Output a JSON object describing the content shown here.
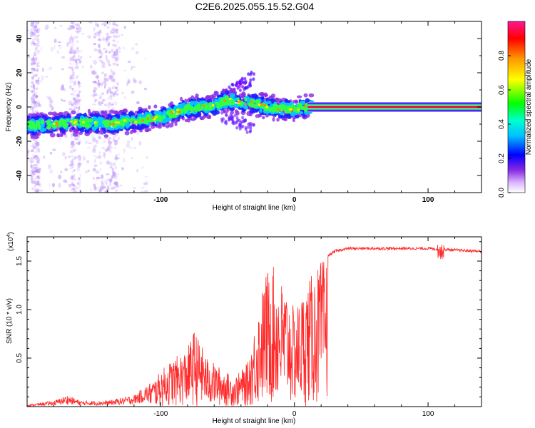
{
  "title": "C2E6.2025.055.15.52.G04",
  "chart_data": [
    {
      "type": "heatmap",
      "name": "spectrogram",
      "xlabel": "Height of straight line (km)",
      "ylabel": "Frequency (Hz)",
      "xlim": [
        -200,
        140
      ],
      "ylim": [
        -50,
        50
      ],
      "xticks": [
        -100,
        0,
        100
      ],
      "yticks": [
        -40,
        -20,
        0,
        20,
        40
      ],
      "ridge": [
        [
          -200,
          -11
        ],
        [
          -180,
          -10
        ],
        [
          -160,
          -9
        ],
        [
          -140,
          -10
        ],
        [
          -120,
          -8
        ],
        [
          -100,
          -6
        ],
        [
          -80,
          -1
        ],
        [
          -60,
          1
        ],
        [
          -50,
          4
        ],
        [
          -40,
          3
        ],
        [
          -30,
          2
        ],
        [
          -20,
          0
        ],
        [
          -10,
          -1
        ],
        [
          0,
          -1
        ],
        [
          10,
          0
        ],
        [
          140,
          0
        ]
      ],
      "colorbar": {
        "label": "Normalized spectral amplitude",
        "range": [
          0,
          1
        ],
        "ticks": [
          "0.0",
          "0.2",
          "0.4",
          "0.6",
          "0.8"
        ],
        "colors": [
          "#ffffff",
          "#cc88ff",
          "#7a00ff",
          "#0000ff",
          "#00e5ff",
          "#00ff00",
          "#ffff00",
          "#ff8800",
          "#ff0000",
          "#ff1493"
        ]
      }
    },
    {
      "type": "line",
      "name": "snr",
      "xlabel": "Height of straight line (km)",
      "ylabel": "SNR (10 * v/v)",
      "multiplier": "(x10",
      "multiplier_exp": "4",
      "multiplier_close": ")",
      "xlim": [
        -200,
        140
      ],
      "ylim": [
        0,
        1.75
      ],
      "xticks": [
        -100,
        0,
        100
      ],
      "yticks": [
        0.5,
        1.0,
        1.5
      ],
      "ytick_labels": [
        "0.5",
        "1.0",
        "1.5"
      ],
      "color": "#ff2a2a",
      "envelope": [
        [
          -200,
          0.02
        ],
        [
          -180,
          0.06
        ],
        [
          -170,
          0.12
        ],
        [
          -160,
          0.06
        ],
        [
          -140,
          0.06
        ],
        [
          -120,
          0.12
        ],
        [
          -105,
          0.28
        ],
        [
          -95,
          0.45
        ],
        [
          -80,
          0.6
        ],
        [
          -75,
          0.8
        ],
        [
          -65,
          0.5
        ],
        [
          -55,
          0.4
        ],
        [
          -45,
          0.3
        ],
        [
          -35,
          0.45
        ],
        [
          -28,
          0.95
        ],
        [
          -22,
          1.35
        ],
        [
          -18,
          1.5
        ],
        [
          -12,
          1.35
        ],
        [
          -5,
          1.2
        ],
        [
          0,
          1.0
        ],
        [
          5,
          1.15
        ],
        [
          10,
          1.3
        ],
        [
          20,
          1.5
        ],
        [
          30,
          1.6
        ],
        [
          40,
          1.63
        ],
        [
          100,
          1.63
        ],
        [
          110,
          1.62
        ],
        [
          140,
          1.6
        ]
      ]
    }
  ]
}
